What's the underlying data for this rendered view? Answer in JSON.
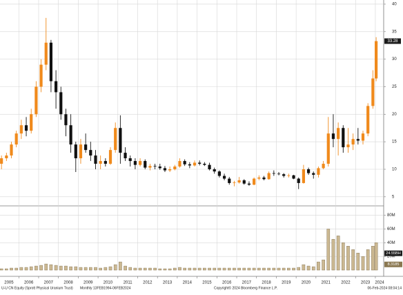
{
  "chart_data": {
    "type": "candlestick",
    "title": "U-U CN Equity (Sprott Physical Uranium Trust)",
    "subtitle": "Monthly 13FEB1994-06FEB2024",
    "copyright": "Copyright© 2024 Bloomberg Finance L.P.",
    "timestamp": "06-Feb-2024 08:04:14",
    "up_color": "#f08a1c",
    "down_color": "#111111",
    "volume_color": "#cbb892",
    "grid": true,
    "x": [
      2005.125,
      2005.375,
      2005.625,
      2005.875,
      2006.125,
      2006.375,
      2006.625,
      2006.875,
      2007.125,
      2007.375,
      2007.625,
      2007.875,
      2008.125,
      2008.375,
      2008.625,
      2008.875,
      2009.125,
      2009.375,
      2009.625,
      2009.875,
      2010.125,
      2010.375,
      2010.625,
      2010.875,
      2011.125,
      2011.375,
      2011.625,
      2011.875,
      2012.125,
      2012.375,
      2012.625,
      2012.875,
      2013.125,
      2013.375,
      2013.625,
      2013.875,
      2014.125,
      2014.375,
      2014.625,
      2014.875,
      2015.125,
      2015.375,
      2015.625,
      2015.875,
      2016.125,
      2016.375,
      2016.625,
      2016.875,
      2017.125,
      2017.375,
      2017.625,
      2017.875,
      2018.125,
      2018.375,
      2018.625,
      2018.875,
      2019.125,
      2019.375,
      2019.625,
      2019.875,
      2020.125,
      2020.375,
      2020.625,
      2020.875,
      2021.125,
      2021.375,
      2021.625,
      2021.875,
      2022.125,
      2022.375,
      2022.625,
      2022.875,
      2023.125,
      2023.375,
      2023.625,
      2023.875,
      2024.04
    ],
    "open": [
      11,
      12,
      12.5,
      14.5,
      16.5,
      18,
      17,
      20,
      25,
      29,
      33,
      26,
      24,
      20,
      18,
      14.5,
      12,
      14.5,
      13.5,
      12.5,
      11,
      11.5,
      11,
      13.5,
      17.5,
      13,
      12,
      11.5,
      10.8,
      11.5,
      10.3,
      10.6,
      10.5,
      10.2,
      9.8,
      10,
      10.5,
      11.5,
      10.9,
      10.7,
      11.2,
      11,
      10.8,
      10,
      9.6,
      8.8,
      8.3,
      7.5,
      7.6,
      8,
      7.4,
      7.2,
      8.3,
      8.5,
      8.2,
      9.3,
      9.2,
      9.1,
      8.8,
      8.9,
      8.3,
      7.5,
      10,
      9.3,
      9,
      10.2,
      11,
      16.5,
      15.5,
      17.5,
      14,
      14.5,
      15.5,
      15.2,
      16.5,
      21.5,
      26.5
    ],
    "high": [
      12.5,
      13,
      15,
      17,
      19,
      19.5,
      21,
      26,
      30,
      37.5,
      33.5,
      28,
      25,
      21,
      20,
      15,
      15.5,
      16.5,
      15,
      13.5,
      12.5,
      12,
      14,
      18.5,
      19.8,
      14,
      12.5,
      12,
      12,
      11.8,
      11,
      11,
      11,
      10.6,
      10.5,
      10.8,
      12,
      11.8,
      11.3,
      11.6,
      11.6,
      11.3,
      11.2,
      10.3,
      9.8,
      9.2,
      8.6,
      7.9,
      8.6,
      8.2,
      7.8,
      8.5,
      8.9,
      8.8,
      9.6,
      9.8,
      9.5,
      9.3,
      9.2,
      9,
      8.5,
      10.8,
      10.3,
      9.6,
      10.5,
      11.5,
      19.5,
      20,
      18.5,
      18,
      17.5,
      16.5,
      17.5,
      17,
      22,
      28,
      34
    ],
    "low": [
      10,
      11.5,
      12,
      14,
      15.5,
      16,
      16.5,
      19.5,
      24,
      28,
      24,
      21,
      19,
      16,
      13,
      9.5,
      11,
      13,
      11.5,
      10,
      10,
      10.5,
      10.8,
      13,
      11,
      11.5,
      10.5,
      10,
      10.5,
      10,
      9.8,
      10,
      9.9,
      9.5,
      9.5,
      9.8,
      10.3,
      10.6,
      10.2,
      10.5,
      10.7,
      10.6,
      9.8,
      9.2,
      8.5,
      8,
      7.2,
      6.9,
      7.4,
      7.2,
      7,
      7.1,
      8,
      8,
      8.1,
      8.8,
      8.9,
      8.5,
      8.5,
      8.2,
      6.4,
      7.4,
      9,
      8.3,
      8.5,
      10,
      10.5,
      14,
      12.5,
      13,
      13,
      13.5,
      14.5,
      14.5,
      16,
      21,
      26
    ],
    "close": [
      12,
      12.5,
      14.5,
      16.5,
      18,
      17,
      20,
      25,
      29,
      33,
      26,
      24,
      20,
      18,
      14.5,
      12,
      14.5,
      13.5,
      12.5,
      11,
      11.5,
      11,
      13.5,
      17.5,
      13,
      12,
      11.5,
      10.8,
      11.5,
      10.3,
      10.6,
      10.5,
      10.2,
      9.8,
      10,
      10.5,
      11.5,
      10.9,
      10.7,
      11.2,
      11,
      10.8,
      10,
      9.6,
      8.8,
      8.3,
      7.5,
      7.6,
      8,
      7.4,
      7.2,
      8.3,
      8.5,
      8.2,
      9.3,
      9.2,
      9.1,
      8.8,
      8.9,
      8.3,
      7.5,
      10,
      9.3,
      9,
      10.2,
      11,
      16.5,
      15.5,
      17.5,
      14,
      14.5,
      15.5,
      15.2,
      16.5,
      21.5,
      26.5,
      33.28
    ],
    "volume": [
      2,
      2,
      3,
      3,
      4,
      4,
      5,
      6,
      7,
      9,
      8,
      7,
      6,
      6,
      5,
      5,
      4,
      4,
      4,
      4,
      3,
      4,
      5,
      8,
      12,
      6,
      4,
      3,
      3,
      3,
      3,
      3,
      2,
      2,
      2,
      3,
      4,
      3,
      3,
      3,
      3,
      3,
      3,
      3,
      3,
      3,
      3,
      3,
      3,
      3,
      3,
      3,
      3,
      3,
      3,
      3,
      3,
      3,
      3,
      3,
      4,
      8,
      6,
      5,
      12,
      15,
      60,
      45,
      50,
      40,
      35,
      30,
      25,
      20,
      30,
      35,
      40
    ],
    "xlim": [
      2005.05,
      2024.42
    ],
    "xticks": [
      2005,
      2006,
      2007,
      2008,
      2009,
      2010,
      2011,
      2012,
      2013,
      2014,
      2015,
      2016,
      2017,
      2018,
      2019,
      2020,
      2021,
      2022,
      2023,
      2024
    ],
    "ylim": [
      3.6,
      40.75
    ],
    "yticks": [
      5,
      10,
      15,
      20,
      25,
      30,
      35,
      40
    ],
    "volume_ylim": [
      0,
      91.7
    ],
    "volume_yticks": [
      {
        "value": 20,
        "label": "20M"
      },
      {
        "value": 40,
        "label": "40M"
      },
      {
        "value": 60,
        "label": "60M"
      },
      {
        "value": 80,
        "label": "80M"
      }
    ],
    "last_price": {
      "value": 33.28,
      "label": "33.28"
    },
    "volume_labels": [
      {
        "value": 24.55,
        "label": "24.55BH"
      },
      {
        "value": 8.3185,
        "label": "8.3185"
      }
    ]
  }
}
